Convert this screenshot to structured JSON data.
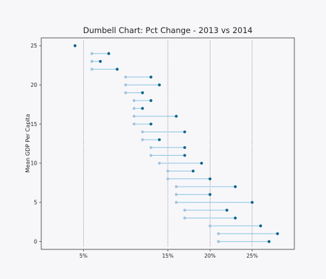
{
  "chart_data": {
    "type": "dumbbell",
    "title": "Dumbell Chart: Pct Change - 2013 vs 2014",
    "ylabel": "Mean GDP Per Capita",
    "xlabel": "",
    "xlim": [
      0,
      30
    ],
    "ylim": [
      -1,
      26
    ],
    "x_ticks": [
      {
        "value": 5,
        "label": "5%"
      },
      {
        "value": 15,
        "label": "15%"
      },
      {
        "value": 20,
        "label": "20%"
      },
      {
        "value": 25,
        "label": "25%"
      }
    ],
    "y_ticks": [
      0,
      5,
      10,
      15,
      20,
      25
    ],
    "vlines": [
      5,
      15,
      20,
      25
    ],
    "grid": false,
    "colors": {
      "pct_2013": "#a3c4dc",
      "pct_2014": "#0e668b",
      "connector": "#89c4e0",
      "vline": "#666666"
    },
    "rows": [
      {
        "y": 25,
        "pct_2013": 4.0,
        "pct_2014": 4.0
      },
      {
        "y": 24,
        "pct_2013": 6.0,
        "pct_2014": 8.0
      },
      {
        "y": 23,
        "pct_2013": 6.0,
        "pct_2014": 7.0
      },
      {
        "y": 22,
        "pct_2013": 6.0,
        "pct_2014": 9.0
      },
      {
        "y": 21,
        "pct_2013": 10.0,
        "pct_2014": 13.0
      },
      {
        "y": 20,
        "pct_2013": 10.0,
        "pct_2014": 14.0
      },
      {
        "y": 19,
        "pct_2013": 10.0,
        "pct_2014": 12.0
      },
      {
        "y": 18,
        "pct_2013": 11.0,
        "pct_2014": 13.0
      },
      {
        "y": 17,
        "pct_2013": 11.0,
        "pct_2014": 12.0
      },
      {
        "y": 16,
        "pct_2013": 11.0,
        "pct_2014": 16.0
      },
      {
        "y": 15,
        "pct_2013": 11.0,
        "pct_2014": 13.0
      },
      {
        "y": 14,
        "pct_2013": 12.0,
        "pct_2014": 17.0
      },
      {
        "y": 13,
        "pct_2013": 12.0,
        "pct_2014": 14.0
      },
      {
        "y": 12,
        "pct_2013": 13.0,
        "pct_2014": 17.0
      },
      {
        "y": 11,
        "pct_2013": 13.0,
        "pct_2014": 17.0
      },
      {
        "y": 10,
        "pct_2013": 14.0,
        "pct_2014": 19.0
      },
      {
        "y": 9,
        "pct_2013": 15.0,
        "pct_2014": 18.0
      },
      {
        "y": 8,
        "pct_2013": 15.0,
        "pct_2014": 20.0
      },
      {
        "y": 7,
        "pct_2013": 16.0,
        "pct_2014": 23.0
      },
      {
        "y": 6,
        "pct_2013": 16.0,
        "pct_2014": 20.0
      },
      {
        "y": 5,
        "pct_2013": 16.0,
        "pct_2014": 25.0
      },
      {
        "y": 4,
        "pct_2013": 17.0,
        "pct_2014": 22.0
      },
      {
        "y": 3,
        "pct_2013": 17.0,
        "pct_2014": 23.0
      },
      {
        "y": 2,
        "pct_2013": 20.0,
        "pct_2014": 26.0
      },
      {
        "y": 1,
        "pct_2013": 21.0,
        "pct_2014": 28.0
      },
      {
        "y": 0,
        "pct_2013": 21.0,
        "pct_2014": 27.0
      }
    ]
  }
}
